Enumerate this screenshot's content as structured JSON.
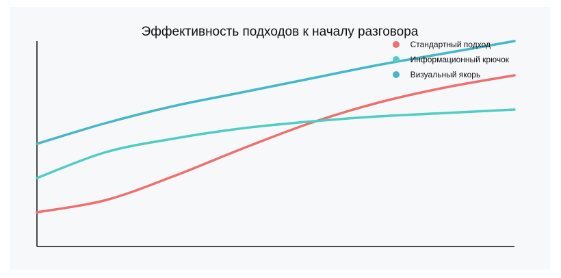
{
  "chart_data": {
    "type": "line",
    "title": "Эффективность подходов к началу разговора",
    "xlabel": "",
    "ylabel": "",
    "x": [
      0,
      1,
      2,
      3,
      4,
      5,
      6,
      7
    ],
    "ylim": [
      0,
      6
    ],
    "series": [
      {
        "name": "Стандартный подход",
        "color": "#ef6f6c",
        "values": [
          1.0,
          1.35,
          2.05,
          2.85,
          3.6,
          4.2,
          4.65,
          5.0
        ]
      },
      {
        "name": "Информационный крючок",
        "color": "#4ecdc4",
        "values": [
          2.0,
          2.75,
          3.15,
          3.45,
          3.65,
          3.8,
          3.9,
          4.0
        ]
      },
      {
        "name": "Визуальный якорь",
        "color": "#45b7c8",
        "values": [
          3.0,
          3.6,
          4.1,
          4.5,
          4.9,
          5.3,
          5.65,
          6.0
        ]
      }
    ],
    "grid": false,
    "legend_position": "top-right"
  }
}
